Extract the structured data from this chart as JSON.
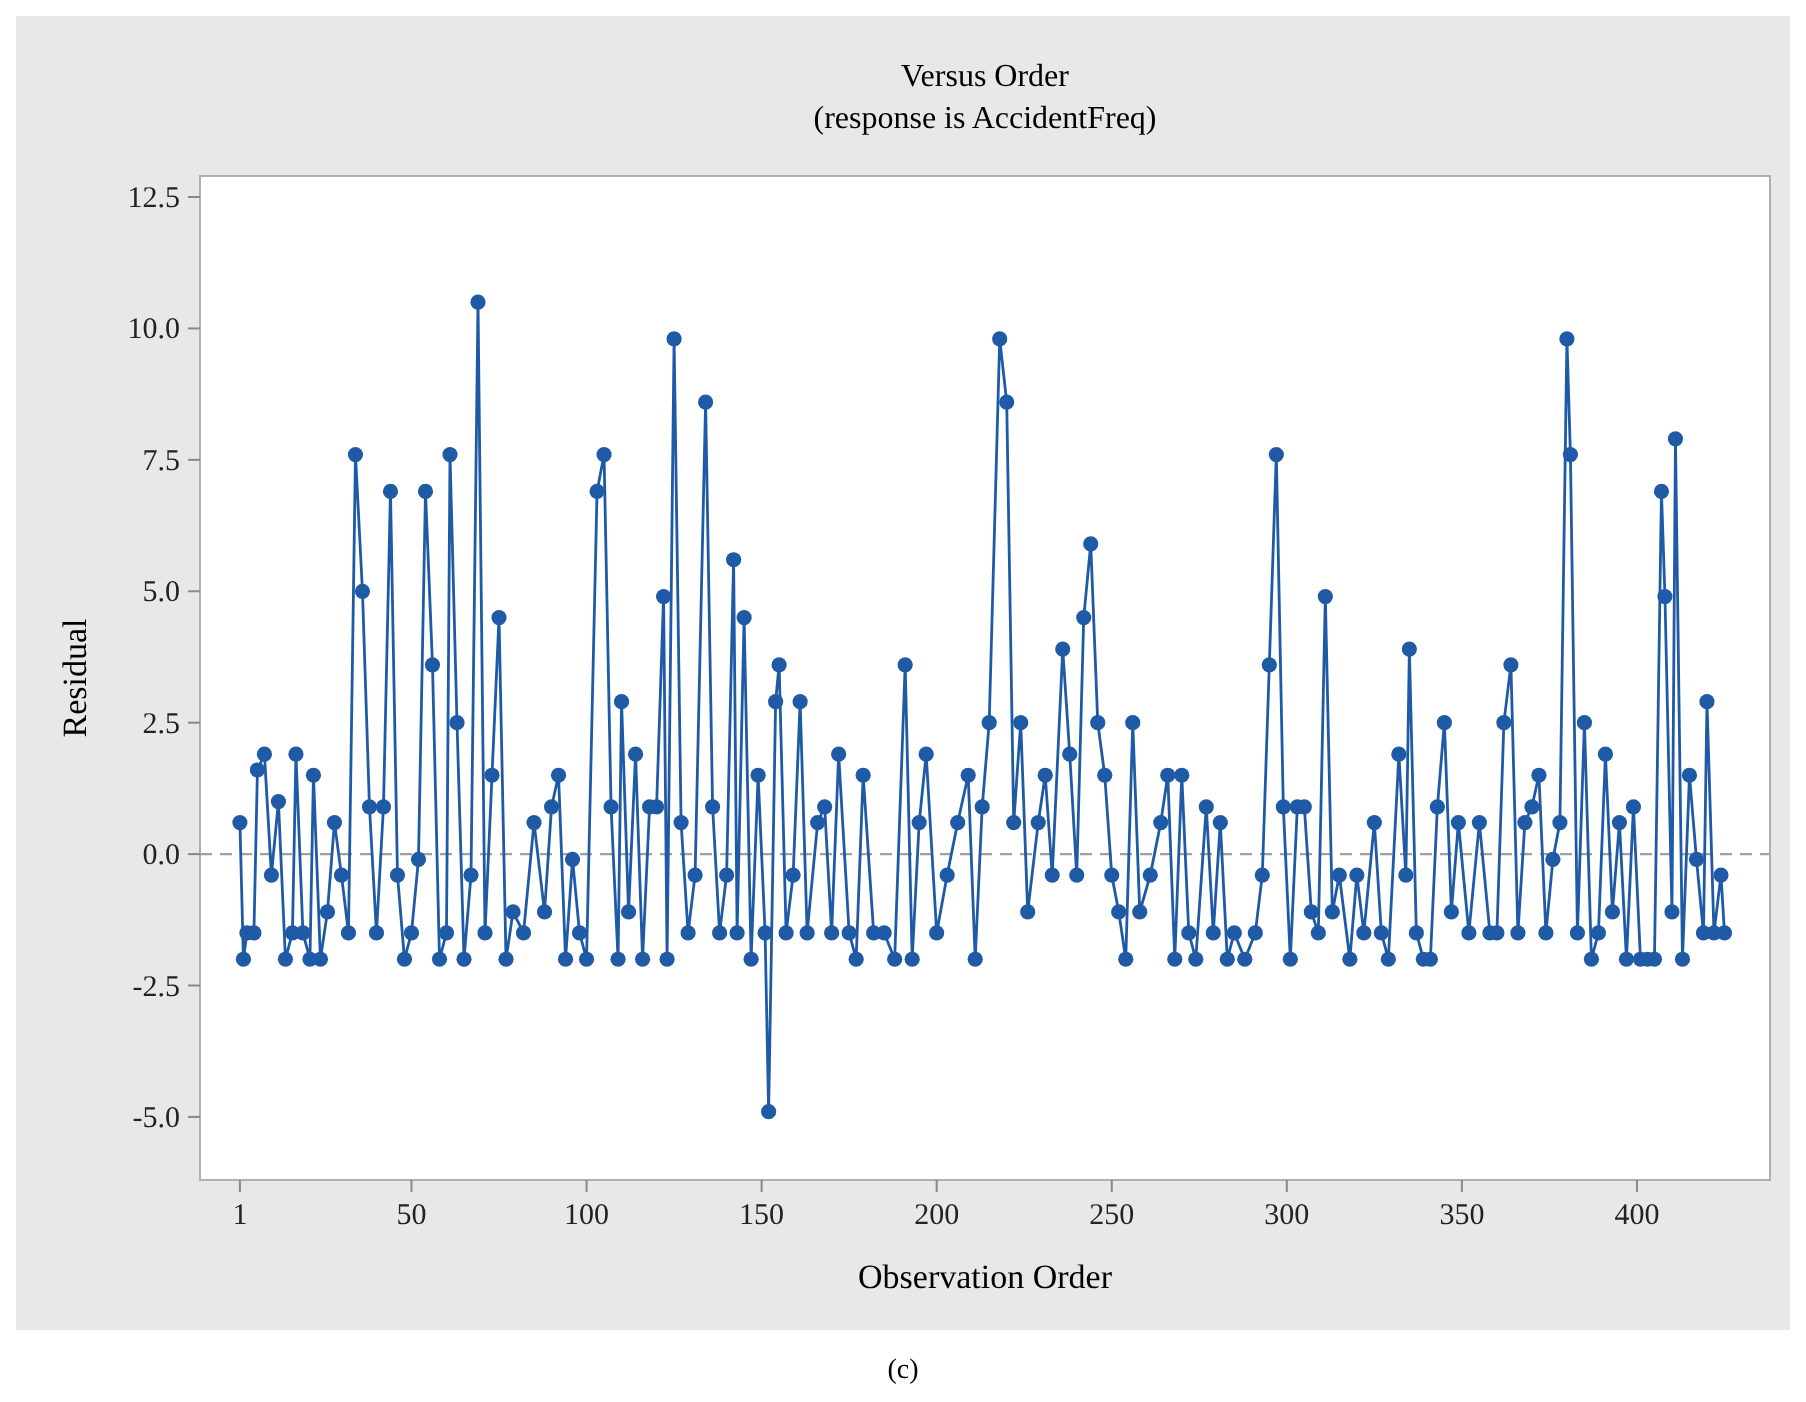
{
  "chart_data": {
    "type": "line",
    "title": "Versus Order",
    "subtitle": "(response is AccidentFreq)",
    "xlabel": "Observation Order",
    "ylabel": "Residual",
    "annotations": [
      "(c)"
    ],
    "xlim": [
      -10.4,
      438
    ],
    "xticks": [
      1,
      50,
      100,
      150,
      200,
      250,
      300,
      350,
      400
    ],
    "ylim": [
      -6.2,
      12.9
    ],
    "yticks": [
      {
        "value": -5,
        "label": "-5.0"
      },
      {
        "value": -2.5,
        "label": "-2.5"
      },
      {
        "value": 0,
        "label": "0.0"
      },
      {
        "value": 2.5,
        "label": "2.5"
      },
      {
        "value": 5,
        "label": "5.0"
      },
      {
        "value": 7.5,
        "label": "7.5"
      },
      {
        "value": 10,
        "label": "10.0"
      },
      {
        "value": 12.5,
        "label": "12.5"
      }
    ],
    "grid": false,
    "marker": "circle",
    "line_style": "solid",
    "ref_lines": [
      {
        "axis": "y",
        "value": 0,
        "color": "#a0a0a0",
        "line_style": "dashed"
      }
    ],
    "series": [
      {
        "color": "#1f5aa6",
        "x": [
          1,
          2,
          3,
          5,
          6,
          8,
          10,
          12,
          14,
          16,
          17,
          19,
          21,
          22,
          24,
          26,
          28,
          30,
          32,
          34,
          36,
          38,
          40,
          42,
          44,
          46,
          48,
          50,
          52,
          54,
          56,
          58,
          60,
          61,
          63,
          65,
          67,
          69,
          71,
          73,
          75,
          77,
          79,
          82,
          85,
          88,
          90,
          92,
          94,
          96,
          98,
          100,
          103,
          105,
          107,
          109,
          110,
          112,
          114,
          116,
          118,
          120,
          122,
          123,
          125,
          127,
          129,
          131,
          134,
          136,
          138,
          140,
          142,
          143,
          145,
          147,
          149,
          151,
          152,
          154,
          155,
          157,
          159,
          161,
          163,
          166,
          168,
          170,
          172,
          175,
          177,
          179,
          182,
          185,
          188,
          191,
          193,
          195,
          197,
          200,
          203,
          206,
          209,
          211,
          213,
          215,
          218,
          220,
          222,
          224,
          226,
          229,
          231,
          233,
          236,
          238,
          240,
          242,
          244,
          246,
          248,
          250,
          252,
          254,
          256,
          258,
          261,
          264,
          266,
          268,
          270,
          272,
          274,
          277,
          279,
          281,
          283,
          285,
          288,
          291,
          293,
          295,
          297,
          299,
          301,
          303,
          305,
          307,
          309,
          311,
          313,
          315,
          318,
          320,
          322,
          325,
          327,
          329,
          332,
          334,
          335,
          337,
          339,
          341,
          343,
          345,
          347,
          349,
          352,
          355,
          358,
          360,
          362,
          364,
          366,
          368,
          370,
          372,
          374,
          376,
          378,
          380,
          381,
          383,
          385,
          387,
          389,
          391,
          393,
          395,
          397,
          399,
          401,
          403,
          405,
          407,
          408,
          410,
          411,
          413,
          415,
          417,
          419,
          420,
          422,
          424,
          425
        ],
        "values": [
          0.6,
          -2.0,
          -1.5,
          -1.5,
          1.6,
          1.9,
          -0.4,
          1.0,
          -2.0,
          -1.5,
          1.9,
          -1.5,
          -2.0,
          1.5,
          -2.0,
          -1.1,
          0.6,
          -0.4,
          -1.5,
          7.6,
          5.0,
          0.9,
          -1.5,
          0.9,
          6.9,
          -0.4,
          -2.0,
          -1.5,
          -0.1,
          6.9,
          3.6,
          -2.0,
          -1.5,
          7.6,
          2.5,
          -2.0,
          -0.4,
          10.5,
          -1.5,
          1.5,
          4.5,
          -2.0,
          -1.1,
          -1.5,
          0.6,
          -1.1,
          0.9,
          1.5,
          -2.0,
          -0.1,
          -1.5,
          -2.0,
          6.9,
          7.6,
          0.9,
          -2.0,
          2.9,
          -1.1,
          1.9,
          -2.0,
          0.9,
          0.9,
          4.9,
          -2.0,
          9.8,
          0.6,
          -1.5,
          -0.4,
          8.6,
          0.9,
          -1.5,
          -0.4,
          5.6,
          -1.5,
          4.5,
          -2.0,
          1.5,
          -1.5,
          -4.9,
          2.9,
          3.6,
          -1.5,
          -0.4,
          2.9,
          -1.5,
          0.6,
          0.9,
          -1.5,
          1.9,
          -1.5,
          -2.0,
          1.5,
          -1.5,
          -1.5,
          -2.0,
          3.6,
          -2.0,
          0.6,
          1.9,
          -1.5,
          -0.4,
          0.6,
          1.5,
          -2.0,
          0.9,
          2.5,
          9.8,
          8.6,
          0.6,
          2.5,
          -1.1,
          0.6,
          1.5,
          -0.4,
          3.9,
          1.9,
          -0.4,
          4.5,
          5.9,
          2.5,
          1.5,
          -0.4,
          -1.1,
          -2.0,
          2.5,
          -1.1,
          -0.4,
          0.6,
          1.5,
          -2.0,
          1.5,
          -1.5,
          -2.0,
          0.9,
          -1.5,
          0.6,
          -2.0,
          -1.5,
          -2.0,
          -1.5,
          -0.4,
          3.6,
          7.6,
          0.9,
          -2.0,
          0.9,
          0.9,
          -1.1,
          -1.5,
          4.9,
          -1.1,
          -0.4,
          -2.0,
          -0.4,
          -1.5,
          0.6,
          -1.5,
          -2.0,
          1.9,
          -0.4,
          3.9,
          -1.5,
          -2.0,
          -2.0,
          0.9,
          2.5,
          -1.1,
          0.6,
          -1.5,
          0.6,
          -1.5,
          -1.5,
          2.5,
          3.6,
          -1.5,
          0.6,
          0.9,
          1.5,
          -1.5,
          -0.1,
          0.6,
          9.8,
          7.6,
          -1.5,
          2.5,
          -2.0,
          -1.5,
          1.9,
          -1.1,
          0.6,
          -2.0,
          0.9,
          -2.0,
          -2.0,
          -2.0,
          6.9,
          4.9,
          -1.1,
          7.9,
          -2.0,
          1.5,
          -0.1,
          -1.5,
          2.9,
          -1.5,
          -0.4,
          -1.5
        ]
      }
    ]
  }
}
